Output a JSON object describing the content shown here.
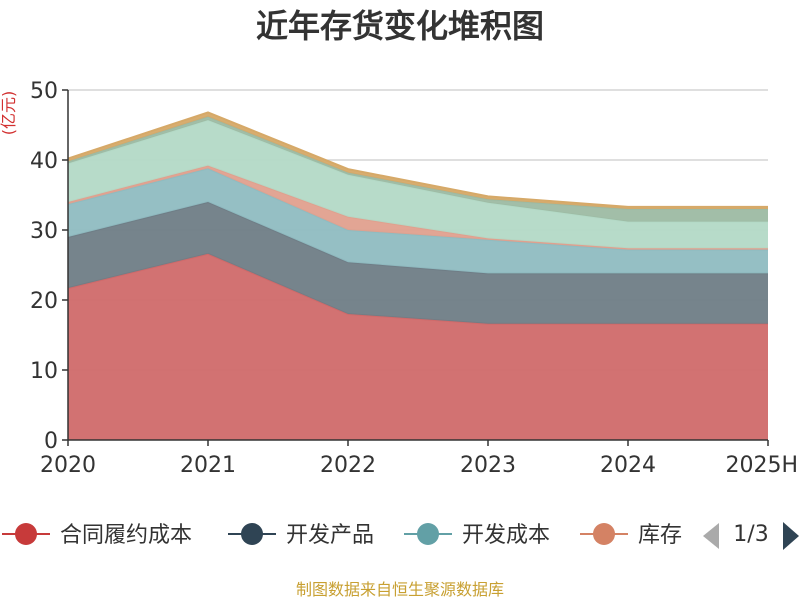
{
  "chart_data": {
    "type": "area",
    "title": "近年存货变化堆积图",
    "ylabel": "(亿元)",
    "categories": [
      "2020",
      "2021",
      "2022",
      "2023",
      "2024",
      "2025H"
    ],
    "ylim": [
      0,
      50
    ],
    "yticks": [
      0,
      10,
      20,
      30,
      40,
      50
    ],
    "grid": true,
    "stacked": true,
    "series": [
      {
        "name": "合同履约成本",
        "color": "#d06a6a",
        "values": [
          21.7,
          26.6,
          18.0,
          16.6,
          16.6,
          16.6
        ]
      },
      {
        "name": "开发产品",
        "color": "#6f7d86",
        "values": [
          7.3,
          7.4,
          7.4,
          7.2,
          7.2,
          7.2
        ]
      },
      {
        "name": "开发成本",
        "color": "#8fbcc1",
        "values": [
          4.7,
          4.8,
          4.6,
          4.8,
          3.4,
          3.4
        ]
      },
      {
        "name": "库存",
        "color": "#e0a08e",
        "values": [
          0.3,
          0.4,
          1.9,
          0.2,
          0.2,
          0.2
        ]
      },
      {
        "name": "",
        "color": "#b3d9c6",
        "values": [
          5.5,
          6.5,
          6.0,
          5.1,
          3.8,
          3.8
        ]
      },
      {
        "name": "",
        "color": "#9dbaa3",
        "values": [
          0.3,
          0.5,
          0.3,
          0.5,
          1.8,
          1.8
        ]
      },
      {
        "name": "",
        "color": "#d6a968",
        "values": [
          0.4,
          0.6,
          0.5,
          0.4,
          0.3,
          0.3
        ]
      }
    ],
    "legend": {
      "placement": "bottom",
      "page": "1/3"
    }
  },
  "footer": "制图数据来自恒生聚源数据库"
}
